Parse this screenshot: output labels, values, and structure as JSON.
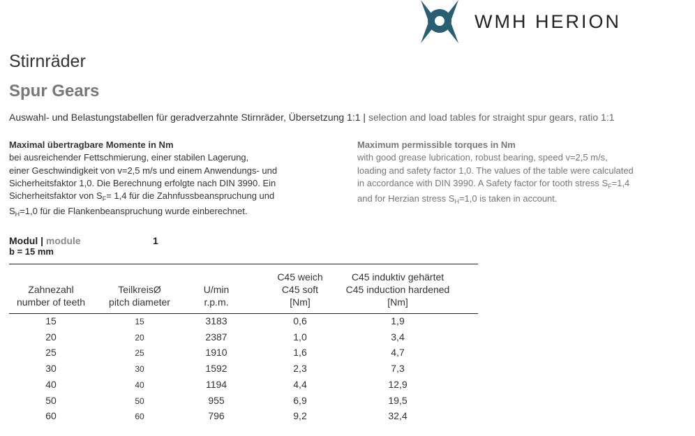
{
  "logo": {
    "text": "WMH HERION"
  },
  "title_de": "Stirnräder",
  "title_en": "Spur Gears",
  "subtitle": {
    "de": "Auswahl- und Belastungstabellen für geradverzahnte Stirnräder, Übersetzung 1:1",
    "separator": "|",
    "en": "selection and load tables for straight spur gears, ratio 1:1"
  },
  "description_de": {
    "heading": "Maximal übertragbare Momente in Nm",
    "lines": [
      [
        "bei ausreichender Fettschmierung, einer stabilen Lagerung,"
      ],
      [
        "einer Geschwindigkeit von v=2,5 m/s und einem Anwendungs- und"
      ],
      [
        "Sicherheitsfaktor 1,0. Die Berechnung erfolgte nach DIN 3990. Ein"
      ],
      [
        "Sicherheitsfaktor von S",
        "F",
        "= 1,4 für die Zahnfussbeanspruchung und"
      ],
      [
        "S",
        "H",
        "=1,0 für die Flankenbeanspruchung wurde einberechnet."
      ]
    ]
  },
  "description_en": {
    "heading": "Maximum permissible torques in Nm",
    "lines": [
      [
        "with good grease lubrication, robust bearing, speed v=2,5 m/s,"
      ],
      [
        "loading and safety factor 1,0. The values of the table were calculated"
      ],
      [
        "in accordance with DIN 3990. A Safety factor for tooth stress S",
        "F",
        "=1,4"
      ],
      [
        "and for Herzian stress S",
        "H",
        "=1,0 is taken in account."
      ]
    ]
  },
  "module": {
    "label_de": "Modul",
    "separator": "|",
    "label_en": "module",
    "value": "1",
    "width": "b = 15 mm"
  },
  "table": {
    "headers": [
      [
        "Zahnezahl",
        "number of teeth"
      ],
      [
        "TeilkreisØ",
        "pitch diameter"
      ],
      [
        "U/min",
        "r.p.m."
      ],
      [
        "C45 weich",
        "C45 soft",
        "[Nm]"
      ],
      [
        "C45 induktiv gehärtet",
        "C45 induction hardened",
        "[Nm]"
      ]
    ],
    "rows": [
      [
        "15",
        "15",
        "3183",
        "0,6",
        "1,9"
      ],
      [
        "20",
        "20",
        "2387",
        "1,0",
        "3,4"
      ],
      [
        "25",
        "25",
        "1910",
        "1,6",
        "4,7"
      ],
      [
        "30",
        "30",
        "1592",
        "2,3",
        "7,3"
      ],
      [
        "40",
        "40",
        "1194",
        "4,4",
        "12,9"
      ],
      [
        "50",
        "50",
        "955",
        "6,9",
        "19,5"
      ],
      [
        "60",
        "60",
        "796",
        "9,2",
        "32,4"
      ]
    ]
  }
}
